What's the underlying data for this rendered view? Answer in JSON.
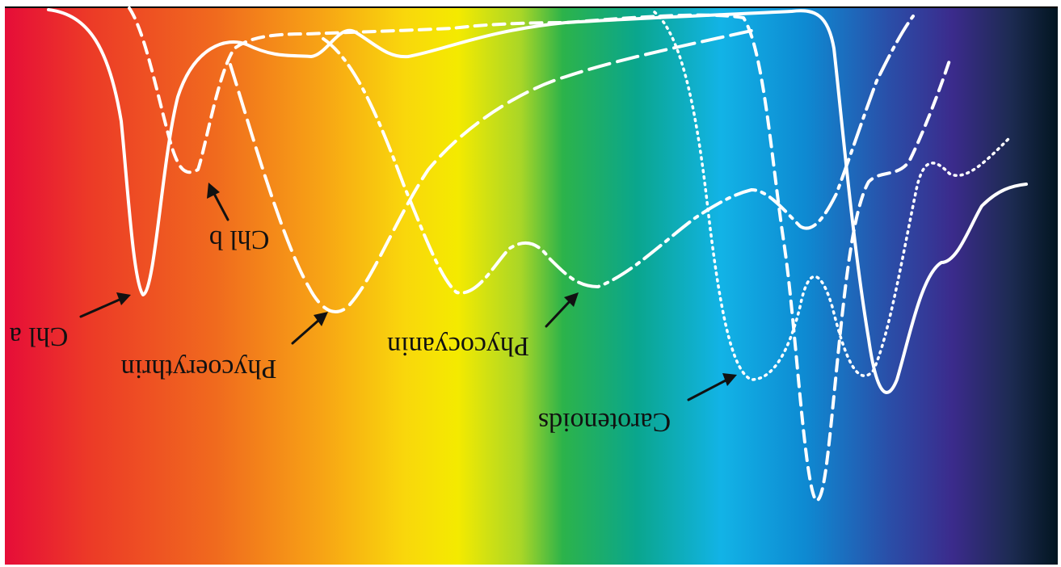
{
  "figure": {
    "spectrum_colors": [
      "#e60d38",
      "#ec3a27",
      "#f06a1e",
      "#f7a315",
      "#f9d70c",
      "#f4ea00",
      "#a9d627",
      "#2cb34a",
      "#0aa68d",
      "#12b3e6",
      "#0e8ad2",
      "#2a4ea8",
      "#3b2b8c",
      "#1d2b52",
      "#021520"
    ],
    "curve_color": "#ffffff",
    "label_color": "#111111",
    "pigments": [
      {
        "key": "chl_a",
        "label": "Chl a",
        "line_style": "solid"
      },
      {
        "key": "chl_b",
        "label": "Chl b",
        "line_style": "short-dashed"
      },
      {
        "key": "phycoerythrin",
        "label": "Phycoerythrin",
        "line_style": "long-dashed"
      },
      {
        "key": "phycocyanin",
        "label": "Phycocyanin",
        "line_style": "dash-dot"
      },
      {
        "key": "carotenoids",
        "label": "Carotenoids",
        "line_style": "dotted"
      }
    ]
  }
}
